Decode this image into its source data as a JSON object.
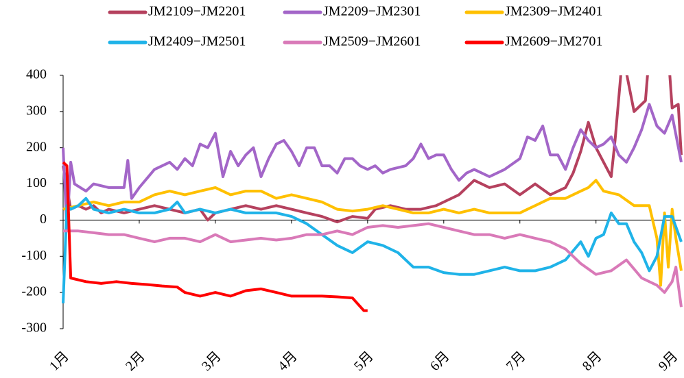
{
  "chart_data": {
    "type": "line",
    "xlim": [
      1,
      9.12
    ],
    "ylim": [
      -300,
      400
    ],
    "yticks": [
      -300,
      -200,
      -100,
      0,
      100,
      200,
      300,
      400
    ],
    "xticks": [
      {
        "value": 1,
        "label": "1月"
      },
      {
        "value": 2,
        "label": "2月"
      },
      {
        "value": 3,
        "label": "3月"
      },
      {
        "value": 4,
        "label": "4月"
      },
      {
        "value": 5,
        "label": "5月"
      },
      {
        "value": 6,
        "label": "6月"
      },
      {
        "value": 7,
        "label": "7月"
      },
      {
        "value": 8,
        "label": "8月"
      },
      {
        "value": 9,
        "label": "9月"
      }
    ],
    "series": [
      {
        "name": "JM2109−JM2201",
        "color": "#b5415e",
        "x": [
          1.0,
          1.1,
          1.2,
          1.3,
          1.4,
          1.5,
          1.6,
          1.8,
          2.0,
          2.2,
          2.4,
          2.6,
          2.8,
          2.9,
          3.0,
          3.2,
          3.4,
          3.6,
          3.8,
          4.0,
          4.2,
          4.4,
          4.6,
          4.8,
          5.0,
          5.1,
          5.3,
          5.5,
          5.7,
          5.9,
          6.0,
          6.2,
          6.4,
          6.6,
          6.8,
          7.0,
          7.2,
          7.4,
          7.6,
          7.7,
          7.8,
          7.9,
          8.0,
          8.2,
          8.25,
          8.35,
          8.5,
          8.65,
          8.7,
          8.95,
          9.0,
          9.08,
          9.12
        ],
        "values": [
          150,
          30,
          40,
          30,
          40,
          20,
          30,
          20,
          30,
          40,
          30,
          20,
          30,
          0,
          20,
          30,
          40,
          30,
          40,
          30,
          20,
          10,
          -5,
          10,
          5,
          30,
          40,
          30,
          30,
          40,
          50,
          70,
          110,
          90,
          100,
          70,
          100,
          70,
          90,
          130,
          190,
          270,
          200,
          120,
          220,
          460,
          300,
          330,
          460,
          460,
          310,
          320,
          180
        ]
      },
      {
        "name": "JM2209−JM2301",
        "color": "#a366c8",
        "x": [
          1.0,
          1.05,
          1.1,
          1.15,
          1.3,
          1.4,
          1.6,
          1.8,
          1.85,
          1.9,
          2.0,
          2.2,
          2.4,
          2.5,
          2.6,
          2.7,
          2.8,
          2.9,
          3.0,
          3.1,
          3.2,
          3.3,
          3.4,
          3.5,
          3.6,
          3.7,
          3.8,
          3.9,
          4.0,
          4.1,
          4.2,
          4.3,
          4.4,
          4.5,
          4.6,
          4.7,
          4.8,
          4.9,
          5.0,
          5.1,
          5.2,
          5.3,
          5.5,
          5.6,
          5.7,
          5.8,
          5.9,
          6.0,
          6.1,
          6.2,
          6.3,
          6.4,
          6.6,
          6.8,
          7.0,
          7.1,
          7.2,
          7.3,
          7.4,
          7.5,
          7.6,
          7.7,
          7.8,
          7.9,
          8.0,
          8.1,
          8.2,
          8.3,
          8.4,
          8.5,
          8.6,
          8.7,
          8.8,
          8.9,
          9.0,
          9.12
        ],
        "values": [
          200,
          -30,
          160,
          100,
          80,
          100,
          90,
          90,
          165,
          60,
          90,
          140,
          160,
          140,
          170,
          150,
          210,
          200,
          240,
          120,
          190,
          150,
          180,
          200,
          120,
          170,
          210,
          220,
          190,
          150,
          200,
          200,
          150,
          150,
          130,
          170,
          170,
          150,
          140,
          150,
          130,
          140,
          150,
          170,
          210,
          170,
          180,
          180,
          140,
          110,
          130,
          140,
          120,
          140,
          170,
          230,
          220,
          260,
          180,
          180,
          140,
          200,
          250,
          220,
          200,
          210,
          230,
          180,
          160,
          200,
          250,
          320,
          260,
          240,
          290,
          160
        ]
      },
      {
        "name": "JM2309−JM2401",
        "color": "#ffc000",
        "x": [
          1.0,
          1.2,
          1.4,
          1.6,
          1.8,
          2.0,
          2.2,
          2.4,
          2.6,
          2.8,
          3.0,
          3.2,
          3.4,
          3.6,
          3.8,
          4.0,
          4.2,
          4.4,
          4.6,
          4.8,
          5.0,
          5.2,
          5.4,
          5.6,
          5.8,
          6.0,
          6.2,
          6.4,
          6.6,
          6.8,
          7.0,
          7.2,
          7.4,
          7.6,
          7.8,
          7.9,
          8.0,
          8.1,
          8.3,
          8.5,
          8.7,
          8.8,
          8.85,
          8.9,
          8.95,
          9.0,
          9.05,
          9.12
        ],
        "values": [
          30,
          40,
          50,
          40,
          50,
          50,
          70,
          80,
          70,
          80,
          90,
          70,
          80,
          80,
          60,
          70,
          60,
          50,
          30,
          25,
          30,
          40,
          30,
          20,
          20,
          30,
          20,
          30,
          20,
          20,
          20,
          40,
          60,
          60,
          80,
          90,
          110,
          80,
          70,
          40,
          40,
          -50,
          -180,
          20,
          -130,
          30,
          -50,
          -140
        ]
      },
      {
        "name": "JM2409−JM2501",
        "color": "#1fb3e8",
        "x": [
          1.0,
          1.05,
          1.1,
          1.2,
          1.3,
          1.4,
          1.6,
          1.8,
          2.0,
          2.2,
          2.4,
          2.5,
          2.6,
          2.8,
          3.0,
          3.2,
          3.4,
          3.6,
          3.8,
          4.0,
          4.2,
          4.4,
          4.6,
          4.8,
          5.0,
          5.2,
          5.4,
          5.6,
          5.8,
          6.0,
          6.2,
          6.4,
          6.6,
          6.8,
          7.0,
          7.2,
          7.4,
          7.6,
          7.8,
          7.9,
          8.0,
          8.1,
          8.2,
          8.3,
          8.4,
          8.5,
          8.6,
          8.7,
          8.8,
          8.9,
          9.0,
          9.12
        ],
        "values": [
          -230,
          40,
          30,
          40,
          60,
          30,
          20,
          30,
          20,
          20,
          30,
          50,
          20,
          30,
          20,
          30,
          20,
          20,
          20,
          10,
          -10,
          -40,
          -70,
          -90,
          -60,
          -70,
          -90,
          -130,
          -130,
          -145,
          -150,
          -150,
          -140,
          -130,
          -140,
          -140,
          -130,
          -110,
          -60,
          -100,
          -50,
          -40,
          20,
          -10,
          -10,
          -60,
          -90,
          -140,
          -100,
          10,
          10,
          -60
        ]
      },
      {
        "name": "JM2509−JM2601",
        "color": "#d97ab8",
        "x": [
          1.0,
          1.2,
          1.4,
          1.6,
          1.8,
          2.0,
          2.2,
          2.4,
          2.6,
          2.8,
          3.0,
          3.2,
          3.4,
          3.6,
          3.8,
          4.0,
          4.2,
          4.4,
          4.6,
          4.8,
          5.0,
          5.2,
          5.4,
          5.6,
          5.8,
          6.0,
          6.2,
          6.4,
          6.6,
          6.8,
          7.0,
          7.2,
          7.4,
          7.6,
          7.8,
          8.0,
          8.2,
          8.4,
          8.6,
          8.8,
          8.9,
          9.0,
          9.05,
          9.12
        ],
        "values": [
          -30,
          -30,
          -35,
          -40,
          -40,
          -50,
          -60,
          -50,
          -50,
          -60,
          -40,
          -60,
          -55,
          -50,
          -55,
          -50,
          -40,
          -40,
          -30,
          -40,
          -20,
          -15,
          -20,
          -15,
          -10,
          -20,
          -30,
          -40,
          -40,
          -50,
          -40,
          -50,
          -60,
          -80,
          -120,
          -150,
          -140,
          -110,
          -160,
          -180,
          -200,
          -170,
          -130,
          -240
        ]
      },
      {
        "name": "JM2609−JM2701",
        "color": "#ff0000",
        "x": [
          1.0,
          1.05,
          1.1,
          1.3,
          1.5,
          1.7,
          1.9,
          2.1,
          2.3,
          2.5,
          2.6,
          2.8,
          3.0,
          3.2,
          3.4,
          3.6,
          3.8,
          4.0,
          4.2,
          4.4,
          4.6,
          4.8,
          4.95,
          5.0
        ],
        "values": [
          160,
          150,
          -160,
          -170,
          -175,
          -170,
          -175,
          -178,
          -182,
          -185,
          -200,
          -210,
          -200,
          -210,
          -195,
          -190,
          -200,
          -210,
          -210,
          -210,
          -212,
          -215,
          -250,
          -250
        ]
      }
    ]
  }
}
